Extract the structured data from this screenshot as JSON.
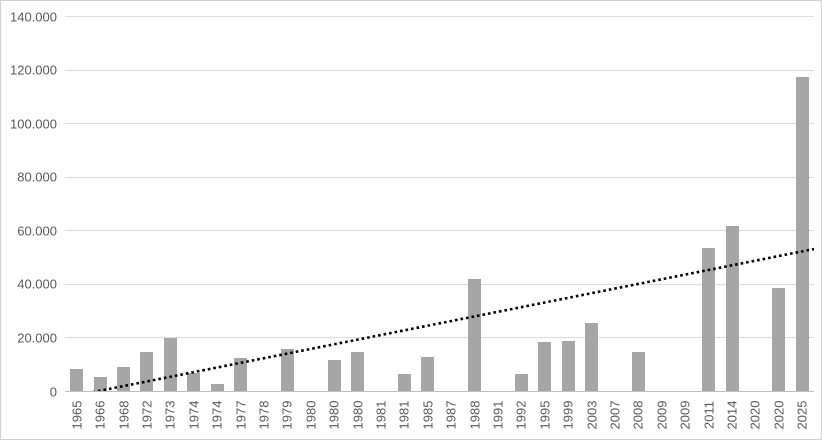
{
  "chart_data": {
    "type": "bar",
    "title": "",
    "xlabel": "",
    "ylabel": "",
    "legend_position": "none",
    "grid": "horizontal",
    "categories": [
      "1965",
      "1966",
      "1968",
      "1972",
      "1973",
      "1974",
      "1974",
      "1977",
      "1978",
      "1979",
      "1980",
      "1980",
      "1980",
      "1981",
      "1981",
      "1985",
      "1987",
      "1988",
      "1991",
      "1992",
      "1995",
      "1999",
      "2003",
      "2007",
      "2008",
      "2009",
      "2009",
      "2011",
      "2014",
      "2020",
      "2020",
      "2025"
    ],
    "values": [
      8300,
      5300,
      8800,
      14600,
      19800,
      6900,
      2800,
      12300,
      null,
      15500,
      null,
      11400,
      14700,
      null,
      6400,
      12800,
      null,
      42000,
      null,
      6200,
      18200,
      18700,
      25300,
      null,
      14500,
      null,
      null,
      53500,
      61500,
      null,
      38500,
      117200
    ],
    "ylim": [
      0,
      140000
    ],
    "y_tick_interval": 20000,
    "y_tick_labels": [
      "0",
      "20.000",
      "40.000",
      "60.000",
      "80.000",
      "100.000",
      "120.000",
      "140.000"
    ],
    "number_format": "dot-as-thousands-separator",
    "trendline": {
      "type": "linear",
      "style": "dotted",
      "color": "#000000",
      "start_value": -2500,
      "end_value": 53000
    },
    "colors": {
      "bar": "#a6a6a6",
      "gridline": "#dcdcdc",
      "axis_line": "#c0c0c0",
      "tick_label": "#595959",
      "background": "#ffffff",
      "frame_border": "#d0d0d0",
      "trendline": "#000000"
    }
  }
}
